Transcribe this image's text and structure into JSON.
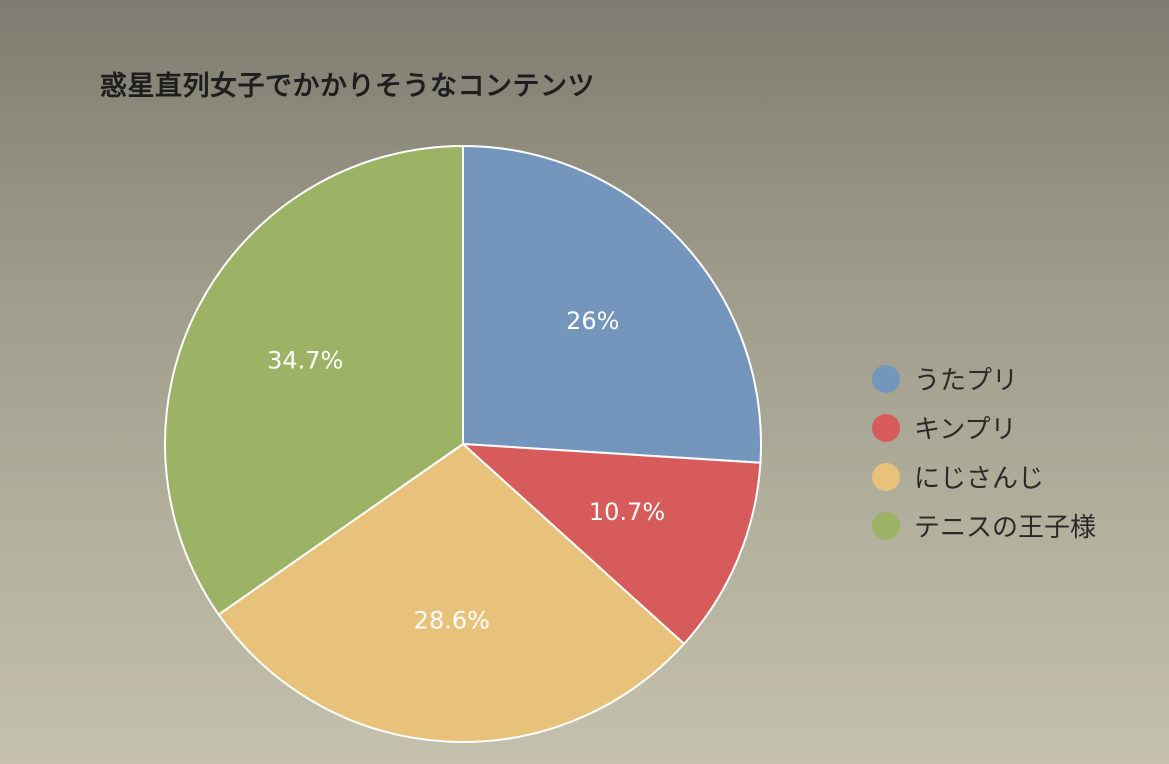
{
  "chart_data": {
    "type": "pie",
    "title": "惑星直列女子でかかりそうなコンテンツ",
    "legend_position": "right",
    "slices": [
      {
        "name": "うたプリ",
        "value": 26,
        "label": "26%",
        "color": "#7496bd"
      },
      {
        "name": "キンプリ",
        "value": 10.7,
        "label": "10.7%",
        "color": "#d65b5a"
      },
      {
        "name": "にじさんじ",
        "value": 28.6,
        "label": "28.6%",
        "color": "#e8c27b"
      },
      {
        "name": "テニスの王子様",
        "value": 34.7,
        "label": "34.7%",
        "color": "#9cb366"
      }
    ]
  }
}
